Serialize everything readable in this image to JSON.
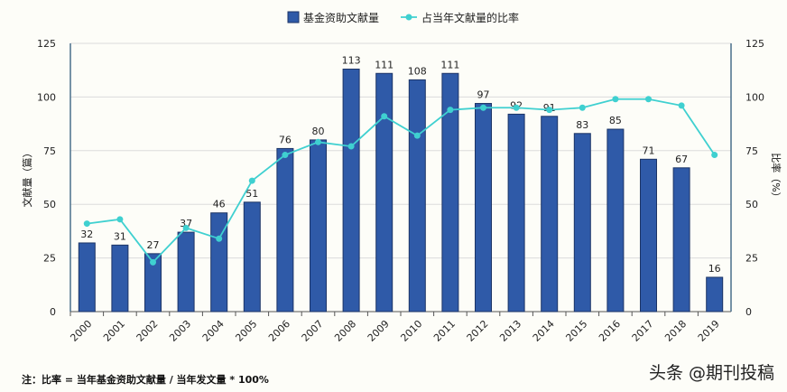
{
  "chart_data": {
    "type": "bar+line",
    "categories": [
      "2000",
      "2001",
      "2002",
      "2003",
      "2004",
      "2005",
      "2006",
      "2007",
      "2008",
      "2009",
      "2010",
      "2011",
      "2012",
      "2013",
      "2014",
      "2015",
      "2016",
      "2017",
      "2018",
      "2019"
    ],
    "series": [
      {
        "name": "基金资助文献量",
        "type": "bar",
        "axis": "left",
        "color": "#2f5aa8",
        "values": [
          32,
          31,
          27,
          37,
          46,
          51,
          76,
          80,
          113,
          111,
          108,
          111,
          97,
          92,
          91,
          83,
          85,
          71,
          67,
          16
        ]
      },
      {
        "name": "占当年文献量的比率",
        "type": "line",
        "axis": "right",
        "color": "#3fd0d0",
        "values": [
          41,
          43,
          23,
          39,
          34,
          61,
          73,
          79,
          77,
          91,
          82,
          94,
          95,
          95,
          94,
          95,
          99,
          99,
          96,
          73
        ]
      }
    ],
    "ylabel": "文献量（篇）",
    "y2label": "比率（%）",
    "ylim": [
      0,
      125
    ],
    "y2lim": [
      0,
      125
    ],
    "yticks": [
      "0",
      "25",
      "50",
      "75",
      "100",
      "125"
    ],
    "grid": true,
    "legend": "top-center"
  },
  "note": "注：比率 = 当年基金资助文献量 / 当年发文量 * 100%",
  "watermark": "头条 @期刊投稿"
}
